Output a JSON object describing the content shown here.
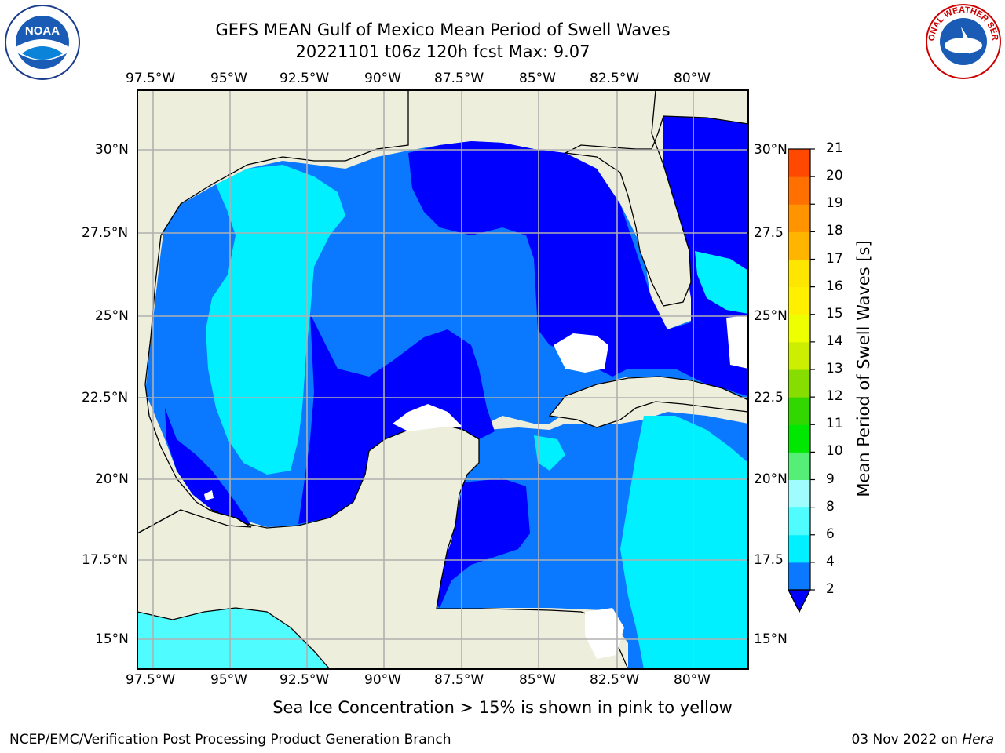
{
  "header": {
    "title_line1": "GEFS MEAN Gulf of Mexico Mean Period of Swell Waves",
    "title_line2": "20221101 t06z 120h fcst   Max: 9.07"
  },
  "map": {
    "lon_labels": [
      "97.5°W",
      "95°W",
      "92.5°W",
      "90°W",
      "87.5°W",
      "85°W",
      "82.5°W",
      "80°W"
    ],
    "lat_labels": [
      "30°N",
      "27.5°N",
      "25°N",
      "22.5°N",
      "20°N",
      "17.5°N",
      "15°N"
    ],
    "lat_labels_right": [
      "30°N",
      "27.5",
      "25°N",
      "22.5",
      "20°N",
      "17.5",
      "15°N"
    ],
    "land_color": "#eeeedd",
    "grid_color": "#b0b0b0"
  },
  "colorbar": {
    "label": "Mean Period of Swell Waves [s]",
    "ticks": [
      "2",
      "4",
      "6",
      "8",
      "9",
      "10",
      "11",
      "12",
      "13",
      "14",
      "15",
      "16",
      "17",
      "18",
      "19",
      "20",
      "21"
    ],
    "colors": [
      "#0000ff",
      "#0a78ff",
      "#00f0ff",
      "#4ffcff",
      "#a0fdff",
      "#55ee77",
      "#00e800",
      "#33d700",
      "#88dd00",
      "#ccee00",
      "#eeff00",
      "#fff000",
      "#ffe600",
      "#ffb400",
      "#ff9400",
      "#ff7000",
      "#ff4800",
      "#ff0000"
    ],
    "under_color": "#0000ff"
  },
  "note": "Sea Ice Concentration > 15% is shown in pink to yellow",
  "footer": {
    "left": "NCEP/EMC/Verification Post Processing Product Generation Branch",
    "right_prefix": "03 Nov 2022 on ",
    "right_host": "Hera"
  },
  "logos": {
    "noaa_text": "NOAA",
    "nws_text": "NATIONAL WEATHER SERVICE"
  }
}
